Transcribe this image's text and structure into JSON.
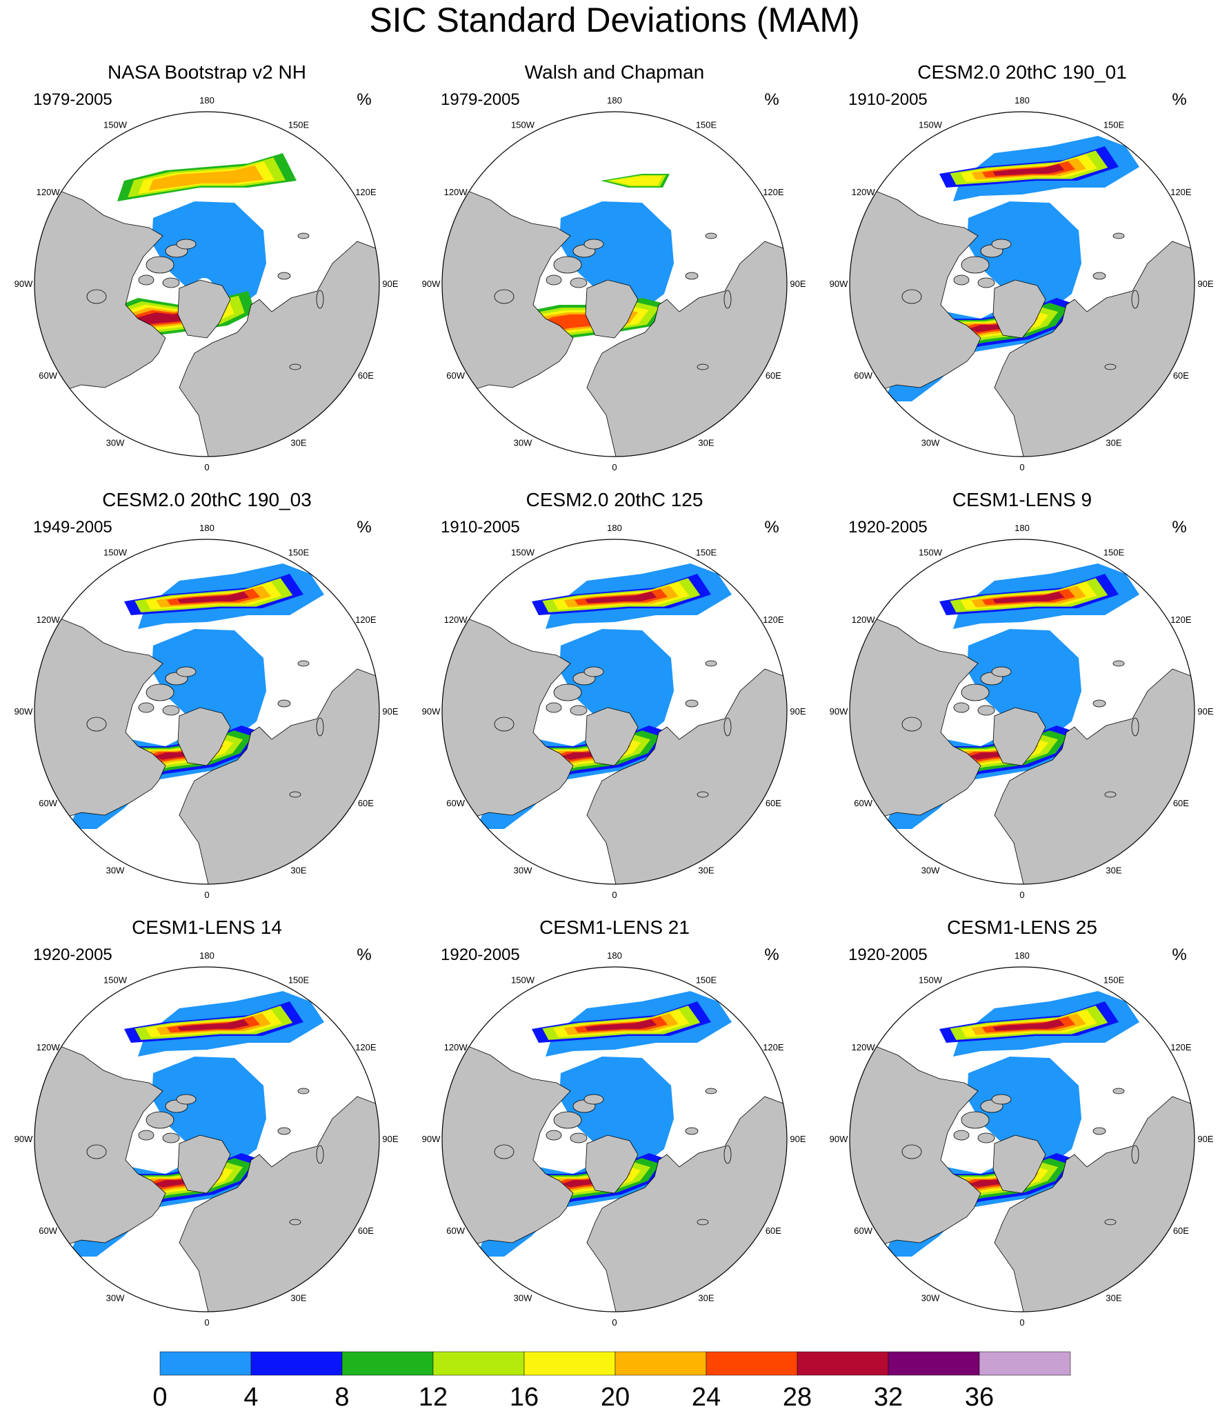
{
  "title": "SIC Standard Deviations (MAM)",
  "unit": "%",
  "lon_labels": [
    "180",
    "150E",
    "120E",
    "90E",
    "60E",
    "30E",
    "0",
    "30W",
    "60W",
    "90W",
    "120W",
    "150W"
  ],
  "panels": [
    {
      "title": "NASA Bootstrap v2 NH",
      "period": "1979-2005",
      "style": "obs_nasa"
    },
    {
      "title": "Walsh and Chapman",
      "period": "1979-2005",
      "style": "obs_wc"
    },
    {
      "title": "CESM2.0 20thC 190_01",
      "period": "1910-2005",
      "style": "model"
    },
    {
      "title": "CESM2.0 20thC 190_03",
      "period": "1949-2005",
      "style": "model"
    },
    {
      "title": "CESM2.0 20thC 125",
      "period": "1910-2005",
      "style": "model"
    },
    {
      "title": "CESM1-LENS 9",
      "period": "1920-2005",
      "style": "model"
    },
    {
      "title": "CESM1-LENS 14",
      "period": "1920-2005",
      "style": "model"
    },
    {
      "title": "CESM1-LENS 21",
      "period": "1920-2005",
      "style": "model"
    },
    {
      "title": "CESM1-LENS 25",
      "period": "1920-2005",
      "style": "model"
    }
  ],
  "colorbar": {
    "colors": [
      "#1e96fa",
      "#0a14fa",
      "#1eb41e",
      "#b4eb0a",
      "#faf50a",
      "#ffb400",
      "#ff4600",
      "#b40a32",
      "#780070",
      "#c8a0d2"
    ],
    "labels": [
      "0",
      "4",
      "8",
      "12",
      "16",
      "20",
      "24",
      "28",
      "32",
      "36"
    ]
  },
  "colors": {
    "land": "#c0c0c0",
    "ocean": "#ffffff",
    "ice_base": "#1e96fa",
    "coast": "#000000"
  }
}
